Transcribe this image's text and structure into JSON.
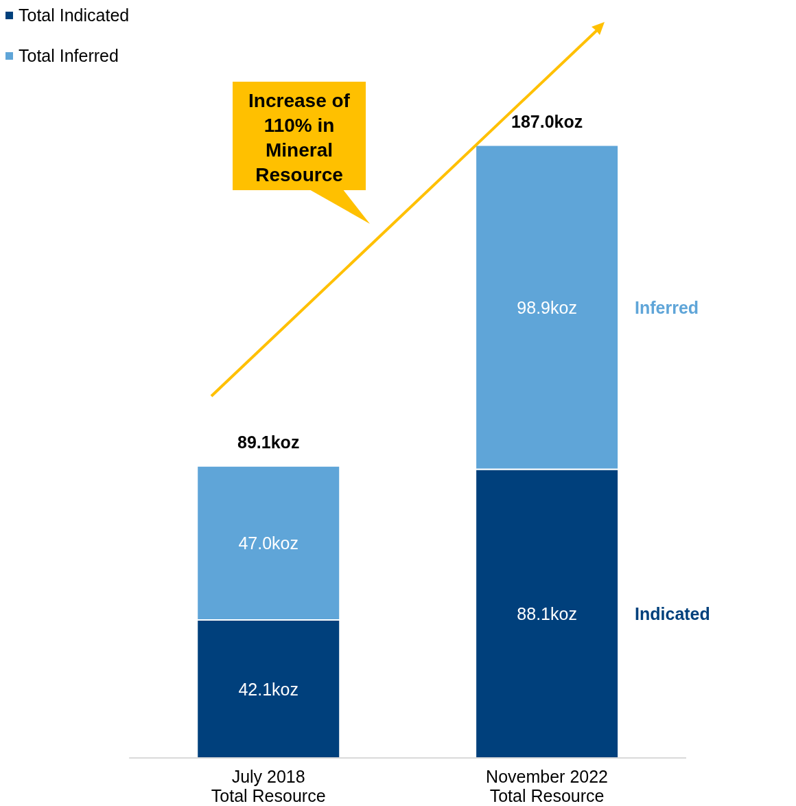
{
  "chart_data": {
    "type": "bar",
    "stacked": true,
    "legend": "top left",
    "tick_labels": "x",
    "categories": [
      "July 2018\nTotal Resource",
      "November 2022\nTotal Resource"
    ],
    "series": [
      {
        "name": "Total Indicated",
        "color": "#00407c",
        "values": [
          42.1,
          88.1
        ],
        "value_labels": [
          "42.1koz",
          "88.1koz"
        ]
      },
      {
        "name": "Total Inferred",
        "color": "#5fa5d8",
        "values": [
          47.0,
          98.9
        ],
        "value_labels": [
          "47.0koz",
          "98.9koz"
        ]
      }
    ],
    "totals": [
      "89.1koz",
      "187.0koz"
    ],
    "annotations": [
      "Increase of 110% in Mineral Resource",
      "Inferred",
      "Indicated"
    ]
  }
}
